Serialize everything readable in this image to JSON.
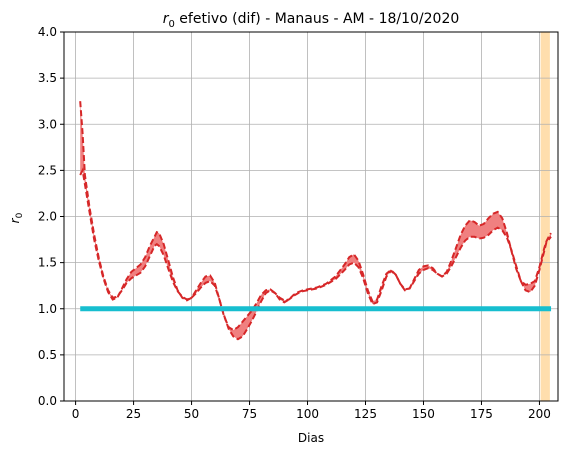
{
  "chart_data": {
    "type": "line",
    "title_main": "r",
    "title_sub": "0",
    "title_rest": " efetivo (dif) - Manaus - AM - 18/10/2020",
    "xlabel": "Dias",
    "ylabel_main": "r",
    "ylabel_sub": "0",
    "xlim": [
      -5,
      208
    ],
    "ylim": [
      0,
      4.0
    ],
    "xticks": [
      0,
      25,
      50,
      75,
      100,
      125,
      150,
      175,
      200
    ],
    "xtick_labels": [
      "0",
      "25",
      "50",
      "75",
      "100",
      "125",
      "150",
      "175",
      "200"
    ],
    "yticks": [
      0,
      0.5,
      1.0,
      1.5,
      2.0,
      2.5,
      3.0,
      3.5,
      4.0
    ],
    "ytick_labels": [
      "0.0",
      "0.5",
      "1.0",
      "1.5",
      "2.0",
      "2.5",
      "3.0",
      "3.5",
      "4.0"
    ],
    "grid": true,
    "reference_line": {
      "y": 1.0,
      "x_start": 2,
      "x_end": 205,
      "color": "#17becf"
    },
    "highlight_span": {
      "x_start": 200.5,
      "x_end": 204.5,
      "color": "#ffdead"
    },
    "band_color": "#f08080",
    "line_color": "#d62728",
    "series": [
      {
        "values": [
          [
            2,
            3.25
          ],
          [
            3,
            2.9
          ],
          [
            4,
            2.45
          ],
          [
            6,
            2.1
          ],
          [
            8,
            1.8
          ],
          [
            10,
            1.55
          ],
          [
            12,
            1.35
          ],
          [
            14,
            1.2
          ],
          [
            16,
            1.12
          ],
          [
            18,
            1.13
          ],
          [
            20,
            1.2
          ],
          [
            22,
            1.28
          ],
          [
            24,
            1.33
          ],
          [
            26,
            1.36
          ],
          [
            28,
            1.39
          ],
          [
            30,
            1.46
          ],
          [
            32,
            1.57
          ],
          [
            34,
            1.68
          ],
          [
            35,
            1.7
          ],
          [
            36,
            1.68
          ],
          [
            38,
            1.58
          ],
          [
            40,
            1.43
          ],
          [
            42,
            1.29
          ],
          [
            44,
            1.19
          ],
          [
            46,
            1.13
          ],
          [
            48,
            1.1
          ],
          [
            50,
            1.12
          ],
          [
            52,
            1.17
          ],
          [
            54,
            1.23
          ],
          [
            56,
            1.28
          ],
          [
            58,
            1.3
          ],
          [
            60,
            1.25
          ],
          [
            62,
            1.1
          ],
          [
            64,
            0.93
          ],
          [
            66,
            0.78
          ],
          [
            68,
            0.7
          ],
          [
            70,
            0.67
          ],
          [
            72,
            0.7
          ],
          [
            74,
            0.78
          ],
          [
            76,
            0.87
          ],
          [
            78,
            0.97
          ],
          [
            80,
            1.08
          ],
          [
            82,
            1.17
          ],
          [
            84,
            1.2
          ],
          [
            86,
            1.17
          ],
          [
            88,
            1.12
          ],
          [
            90,
            1.09
          ],
          [
            92,
            1.1
          ],
          [
            94,
            1.14
          ],
          [
            96,
            1.17
          ],
          [
            98,
            1.19
          ],
          [
            100,
            1.2
          ],
          [
            104,
            1.22
          ],
          [
            108,
            1.26
          ],
          [
            112,
            1.32
          ],
          [
            116,
            1.42
          ],
          [
            118,
            1.48
          ],
          [
            120,
            1.5
          ],
          [
            122,
            1.45
          ],
          [
            124,
            1.33
          ],
          [
            126,
            1.17
          ],
          [
            128,
            1.05
          ],
          [
            130,
            1.07
          ],
          [
            132,
            1.2
          ],
          [
            134,
            1.35
          ],
          [
            136,
            1.41
          ],
          [
            138,
            1.37
          ],
          [
            140,
            1.27
          ],
          [
            142,
            1.21
          ],
          [
            144,
            1.22
          ],
          [
            146,
            1.3
          ],
          [
            148,
            1.38
          ],
          [
            150,
            1.42
          ],
          [
            152,
            1.44
          ],
          [
            154,
            1.42
          ],
          [
            156,
            1.38
          ],
          [
            158,
            1.35
          ],
          [
            160,
            1.38
          ],
          [
            162,
            1.46
          ],
          [
            164,
            1.56
          ],
          [
            166,
            1.66
          ],
          [
            168,
            1.74
          ],
          [
            170,
            1.78
          ],
          [
            172,
            1.78
          ],
          [
            174,
            1.76
          ],
          [
            176,
            1.77
          ],
          [
            178,
            1.8
          ],
          [
            180,
            1.85
          ],
          [
            182,
            1.88
          ],
          [
            184,
            1.85
          ],
          [
            186,
            1.77
          ],
          [
            188,
            1.63
          ],
          [
            190,
            1.46
          ],
          [
            192,
            1.3
          ],
          [
            194,
            1.2
          ],
          [
            196,
            1.18
          ],
          [
            198,
            1.25
          ],
          [
            200,
            1.42
          ],
          [
            202,
            1.62
          ],
          [
            203,
            1.72
          ],
          [
            204,
            1.75
          ],
          [
            205,
            1.78
          ]
        ]
      },
      {
        "values": [
          [
            2,
            2.45
          ],
          [
            3,
            2.5
          ],
          [
            4,
            2.35
          ],
          [
            6,
            2.05
          ],
          [
            8,
            1.75
          ],
          [
            10,
            1.52
          ],
          [
            12,
            1.33
          ],
          [
            14,
            1.18
          ],
          [
            16,
            1.1
          ],
          [
            18,
            1.12
          ],
          [
            20,
            1.22
          ],
          [
            22,
            1.32
          ],
          [
            24,
            1.4
          ],
          [
            26,
            1.44
          ],
          [
            28,
            1.48
          ],
          [
            30,
            1.56
          ],
          [
            32,
            1.68
          ],
          [
            34,
            1.78
          ],
          [
            35,
            1.83
          ],
          [
            36,
            1.82
          ],
          [
            38,
            1.7
          ],
          [
            40,
            1.52
          ],
          [
            42,
            1.34
          ],
          [
            44,
            1.2
          ],
          [
            46,
            1.12
          ],
          [
            48,
            1.09
          ],
          [
            50,
            1.12
          ],
          [
            52,
            1.2
          ],
          [
            54,
            1.28
          ],
          [
            56,
            1.35
          ],
          [
            58,
            1.36
          ],
          [
            60,
            1.28
          ],
          [
            62,
            1.1
          ],
          [
            64,
            0.92
          ],
          [
            66,
            0.8
          ],
          [
            68,
            0.77
          ],
          [
            70,
            0.8
          ],
          [
            72,
            0.86
          ],
          [
            74,
            0.92
          ],
          [
            76,
            0.98
          ],
          [
            78,
            1.06
          ],
          [
            80,
            1.15
          ],
          [
            82,
            1.2
          ],
          [
            84,
            1.21
          ],
          [
            86,
            1.17
          ],
          [
            88,
            1.1
          ],
          [
            90,
            1.07
          ],
          [
            92,
            1.1
          ],
          [
            94,
            1.15
          ],
          [
            96,
            1.18
          ],
          [
            98,
            1.2
          ],
          [
            100,
            1.21
          ],
          [
            104,
            1.23
          ],
          [
            108,
            1.27
          ],
          [
            112,
            1.35
          ],
          [
            116,
            1.48
          ],
          [
            118,
            1.56
          ],
          [
            120,
            1.59
          ],
          [
            122,
            1.52
          ],
          [
            124,
            1.37
          ],
          [
            126,
            1.2
          ],
          [
            128,
            1.08
          ],
          [
            130,
            1.1
          ],
          [
            132,
            1.25
          ],
          [
            134,
            1.38
          ],
          [
            136,
            1.42
          ],
          [
            138,
            1.37
          ],
          [
            140,
            1.27
          ],
          [
            142,
            1.2
          ],
          [
            144,
            1.22
          ],
          [
            146,
            1.32
          ],
          [
            148,
            1.42
          ],
          [
            150,
            1.46
          ],
          [
            152,
            1.47
          ],
          [
            154,
            1.44
          ],
          [
            156,
            1.38
          ],
          [
            158,
            1.35
          ],
          [
            160,
            1.4
          ],
          [
            162,
            1.52
          ],
          [
            164,
            1.66
          ],
          [
            166,
            1.8
          ],
          [
            168,
            1.9
          ],
          [
            170,
            1.96
          ],
          [
            172,
            1.94
          ],
          [
            174,
            1.9
          ],
          [
            176,
            1.92
          ],
          [
            178,
            1.98
          ],
          [
            180,
            2.03
          ],
          [
            182,
            2.05
          ],
          [
            184,
            1.98
          ],
          [
            186,
            1.82
          ],
          [
            188,
            1.62
          ],
          [
            190,
            1.43
          ],
          [
            192,
            1.3
          ],
          [
            194,
            1.26
          ],
          [
            196,
            1.27
          ],
          [
            198,
            1.3
          ],
          [
            200,
            1.45
          ],
          [
            202,
            1.65
          ],
          [
            203,
            1.73
          ],
          [
            204,
            1.78
          ],
          [
            205,
            1.82
          ]
        ]
      }
    ]
  }
}
